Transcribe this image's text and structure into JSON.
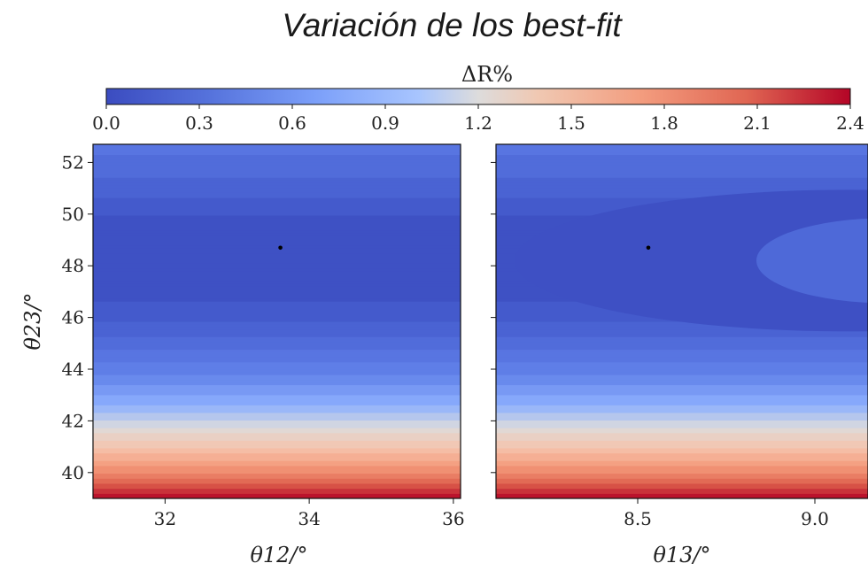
{
  "title": "Variación de los best-fit",
  "colorbar": {
    "label": "ΔR%",
    "ticks": [
      "0.0",
      "0.3",
      "0.6",
      "0.9",
      "1.2",
      "1.5",
      "1.8",
      "2.1",
      "2.4"
    ],
    "range": [
      0.0,
      2.4
    ],
    "colormap": "coolwarm",
    "colors": [
      "#3b4cc0",
      "#6788ee",
      "#9abbff",
      "#c9d7f0",
      "#edd1c2",
      "#f7a889",
      "#e36a53",
      "#b40426"
    ]
  },
  "chart_data": [
    {
      "type": "heatmap",
      "panel": "left",
      "xlabel": "θ12/°",
      "ylabel": "θ23/°",
      "xlim": [
        31.0,
        36.1
      ],
      "ylim": [
        39.0,
        52.7
      ],
      "xticks": [
        "32",
        "34",
        "36"
      ],
      "yticks": [
        "40",
        "42",
        "44",
        "46",
        "48",
        "50",
        "52"
      ],
      "best_fit": {
        "x": 33.6,
        "y": 48.7
      },
      "z_profile_vs_theta23": [
        {
          "y": 39.0,
          "z": 2.4
        },
        {
          "y": 40.0,
          "z": 1.9
        },
        {
          "y": 41.0,
          "z": 1.5
        },
        {
          "y": 42.0,
          "z": 1.1
        },
        {
          "y": 43.0,
          "z": 0.8
        },
        {
          "y": 44.0,
          "z": 0.55
        },
        {
          "y": 45.0,
          "z": 0.35
        },
        {
          "y": 46.0,
          "z": 0.18
        },
        {
          "y": 47.0,
          "z": 0.05
        },
        {
          "y": 48.7,
          "z": 0.0
        },
        {
          "y": 50.0,
          "z": 0.1
        },
        {
          "y": 51.0,
          "z": 0.25
        },
        {
          "y": 52.7,
          "z": 0.45
        }
      ]
    },
    {
      "type": "heatmap",
      "panel": "right",
      "xlabel": "θ13/°",
      "ylabel": "",
      "xlim": [
        8.1,
        9.15
      ],
      "ylim": [
        39.0,
        52.7
      ],
      "xticks": [
        "8.5",
        "9.0"
      ],
      "yticks": [],
      "best_fit": {
        "x": 8.53,
        "y": 48.7
      },
      "z_profile_vs_theta23": [
        {
          "y": 39.0,
          "z": 2.4
        },
        {
          "y": 40.0,
          "z": 1.9
        },
        {
          "y": 41.0,
          "z": 1.5
        },
        {
          "y": 42.0,
          "z": 1.1
        },
        {
          "y": 43.0,
          "z": 0.8
        },
        {
          "y": 44.0,
          "z": 0.55
        },
        {
          "y": 45.0,
          "z": 0.35
        },
        {
          "y": 46.0,
          "z": 0.18
        },
        {
          "y": 47.0,
          "z": 0.05
        },
        {
          "y": 48.7,
          "z": 0.0
        },
        {
          "y": 50.0,
          "z": 0.1
        },
        {
          "y": 51.0,
          "z": 0.25
        },
        {
          "y": 52.7,
          "z": 0.45
        }
      ]
    }
  ]
}
